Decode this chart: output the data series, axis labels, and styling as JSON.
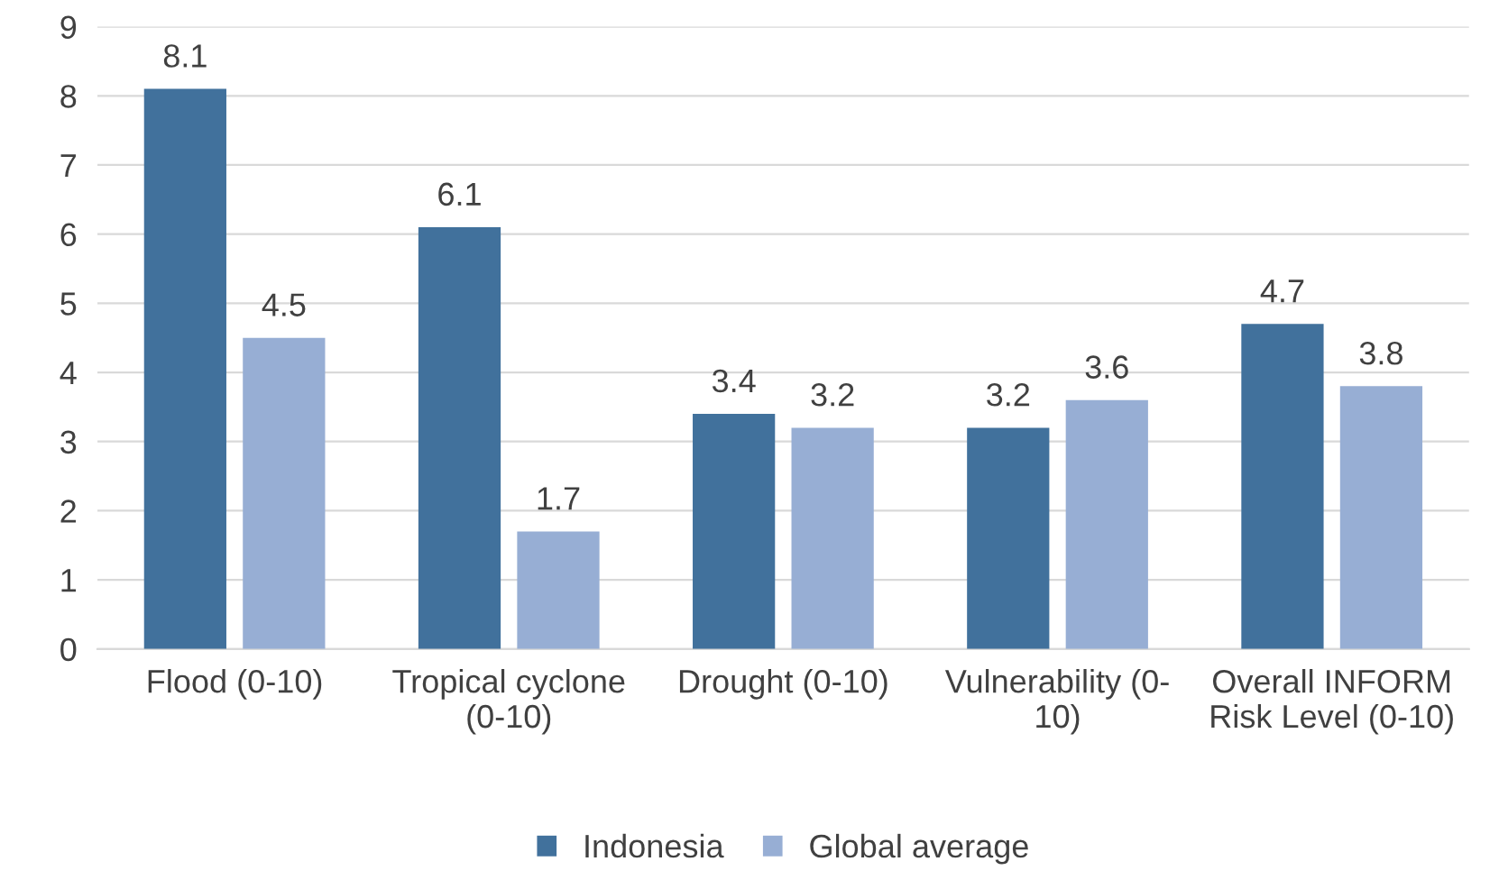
{
  "chart_data": {
    "type": "bar",
    "categories": [
      "Flood (0-10)",
      "Tropical cyclone\n(0-10)",
      "Drought (0-10)",
      "Vulnerability (0-\n10)",
      "Overall INFORM\nRisk Level (0-10)"
    ],
    "series": [
      {
        "name": "Indonesia",
        "color": "#41719c",
        "values": [
          8.1,
          6.1,
          3.4,
          3.2,
          4.7
        ]
      },
      {
        "name": "Global average",
        "color": "#97aed4",
        "values": [
          4.5,
          1.7,
          3.2,
          3.6,
          3.8
        ]
      }
    ],
    "ylim": [
      0,
      9
    ],
    "yticks": [
      0,
      1,
      2,
      3,
      4,
      5,
      6,
      7,
      8,
      9
    ],
    "grid": "y",
    "legend": "bottom",
    "data_labels": true
  }
}
